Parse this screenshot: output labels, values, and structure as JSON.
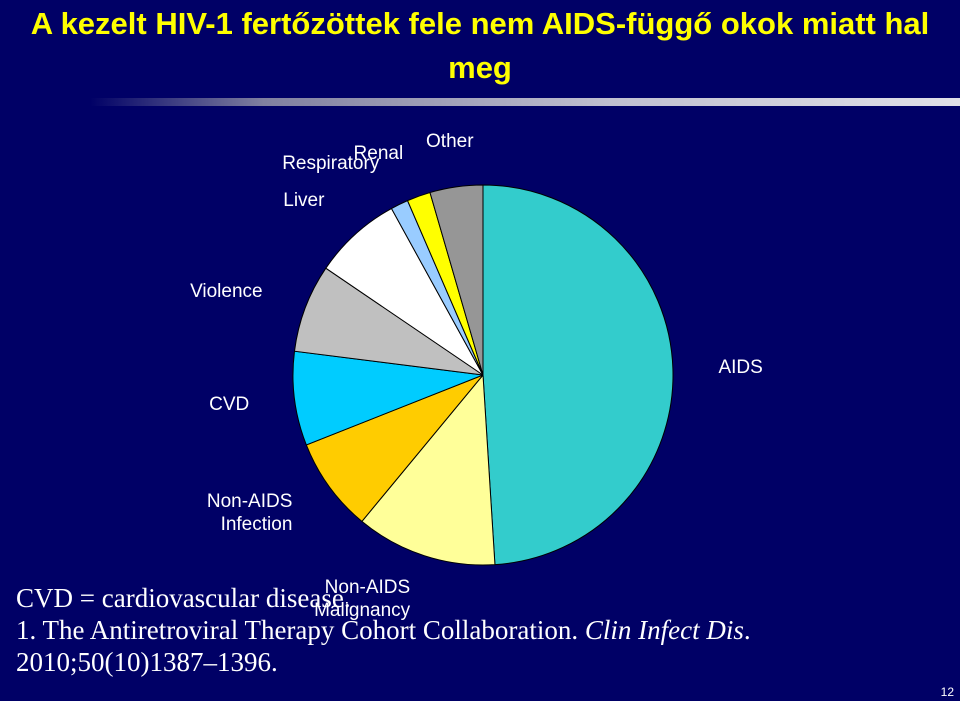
{
  "chart_data": {
    "type": "pie",
    "title": "A kezelt HIV-1 fertőzöttek fele nem AIDS-függő okok miatt hal meg",
    "categories": [
      "AIDS",
      "Non-AIDS Malignancy",
      "Non-AIDS Infection",
      "CVD",
      "Violence",
      "Liver",
      "Respiratory",
      "Renal",
      "Other"
    ],
    "values": [
      49,
      12,
      8,
      8,
      7.5,
      7.5,
      1.5,
      2,
      4.5
    ],
    "colors": [
      "#33cccc",
      "#ffff99",
      "#ffcc00",
      "#00ccff",
      "#c0c0c0",
      "#ffffff",
      "#99ccff",
      "#ffff00",
      "#969696"
    ]
  },
  "footnote": "CVD = cardiovascular disease.",
  "reference": {
    "text": "1. The Antiretroviral Therapy Cohort Collaboration.",
    "journal": "Clin Infect Dis",
    "citation": ". 2010;50(10)1387–1396."
  },
  "slide_number": 12
}
